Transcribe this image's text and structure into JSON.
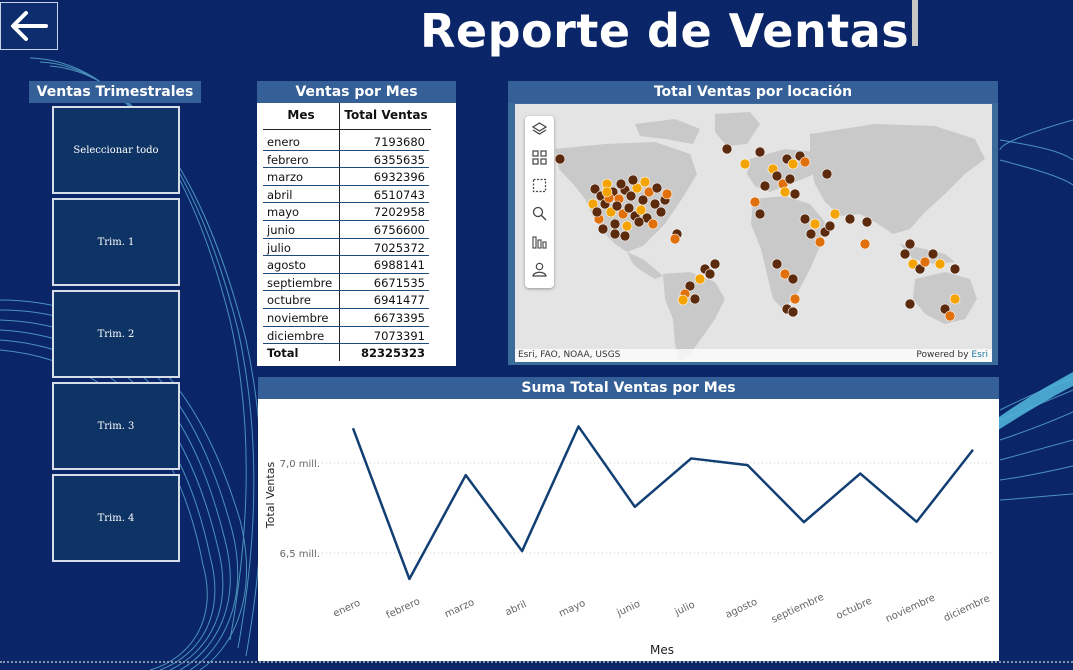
{
  "title": "Reporte de Ventas",
  "back_icon": "arrow-left-icon",
  "slicer": {
    "header": "Ventas Trimestrales",
    "buttons": [
      "Seleccionar todo",
      "Trim. 1",
      "Trim. 2",
      "Trim. 3",
      "Trim. 4"
    ]
  },
  "table": {
    "header": "Ventas por Mes",
    "col_mes": "Mes",
    "col_total": "Total Ventas",
    "rows": [
      {
        "mes": "enero",
        "total": "7193680"
      },
      {
        "mes": "febrero",
        "total": "6355635"
      },
      {
        "mes": "marzo",
        "total": "6932396"
      },
      {
        "mes": "abril",
        "total": "6510743"
      },
      {
        "mes": "mayo",
        "total": "7202958"
      },
      {
        "mes": "junio",
        "total": "6756600"
      },
      {
        "mes": "julio",
        "total": "7025372"
      },
      {
        "mes": "agosto",
        "total": "6988141"
      },
      {
        "mes": "septiembre",
        "total": "6671535"
      },
      {
        "mes": "octubre",
        "total": "6941477"
      },
      {
        "mes": "noviembre",
        "total": "6673395"
      },
      {
        "mes": "diciembre",
        "total": "7073391"
      }
    ],
    "total_label": "Total",
    "total_value": "82325323"
  },
  "map": {
    "header": "Total Ventas por locación",
    "attribution": "Esri, FAO, NOAA, USGS",
    "powered_prefix": "Powered by",
    "powered_brand": "Esri",
    "tools": [
      "layers-icon",
      "qr-grid-icon",
      "select-rect-icon",
      "zoom-search-icon",
      "chart-bars-icon",
      "person-icon"
    ],
    "colors": {
      "land": "#c8c8c8",
      "water": "#e4e4e4",
      "dot_dark": "#5c2a0d",
      "dot_mid": "#e0700c",
      "dot_light": "#f5a300"
    }
  },
  "chart": {
    "header": "Suma Total Ventas por Mes",
    "ylabel": "Total Ventas",
    "xlabel": "Mes",
    "ytick_labels": [
      "7,0 mill.",
      "6,5 mill."
    ]
  },
  "chart_data": {
    "type": "line",
    "title": "Suma Total Ventas por Mes",
    "xlabel": "Mes",
    "ylabel": "Total Ventas",
    "categories": [
      "enero",
      "febrero",
      "marzo",
      "abril",
      "mayo",
      "junio",
      "julio",
      "agosto",
      "septiembre",
      "octubre",
      "noviembre",
      "diciembre"
    ],
    "values": [
      7193680,
      6355635,
      6932396,
      6510743,
      7202958,
      6756600,
      7025372,
      6988141,
      6671535,
      6941477,
      6673395,
      7073391
    ],
    "yticks": [
      6500000,
      7000000
    ],
    "ylim": [
      6300000,
      7300000
    ],
    "grid": true,
    "line_color": "#123f73"
  },
  "colors": {
    "background": "#0b2668",
    "header_bar": "#356097",
    "slicer_button": "#0e3466"
  }
}
